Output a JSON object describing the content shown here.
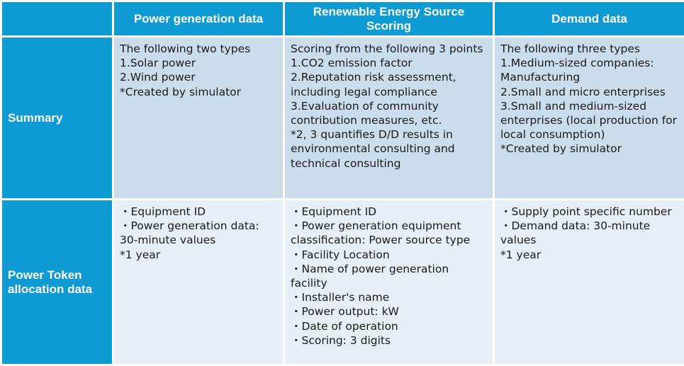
{
  "columns": [
    "",
    "Power generation data",
    "Renewable Energy Source Scoring",
    "Demand data"
  ],
  "rows": [
    {
      "header": "Summary",
      "cells": [
        [
          "The following two types",
          "1.Solar power",
          "2.Wind power",
          "*Created by simulator"
        ],
        [
          "Scoring from the following 3 points",
          "1.CO2 emission factor",
          "2.Reputation risk assessment, including legal compliance",
          "3.Evaluation of community contribution measures, etc.",
          "*2, 3 quantifies D/D results in environmental consulting and technical consulting"
        ],
        [
          "The following three types",
          "1.Medium-sized companies: Manufacturing",
          "2.Small and micro enterprises",
          "3.Small and medium-sized enterprises (local production for local consumption)",
          "*Created by simulator"
        ]
      ]
    },
    {
      "header": "Power Token allocation data",
      "cells": [
        [
          "・Equipment ID",
          "・Power generation data: 30-minute values",
          "*1 year"
        ],
        [
          "・Equipment ID",
          "・Power generation equipment classification: Power source type",
          "・Facility Location",
          "・Name of power generation facility",
          "・Installer's name",
          "・Power output: kW",
          "・Date of operation",
          "・Scoring: 3 digits"
        ],
        [
          "・Supply point specific number",
          "・Demand data: 30-minute values",
          "*1 year"
        ]
      ]
    }
  ],
  "colors": {
    "header_blue": "#0e9bd3",
    "summary_row_bg": "#cbdced",
    "allocation_row_bg": "#e8eef6"
  }
}
